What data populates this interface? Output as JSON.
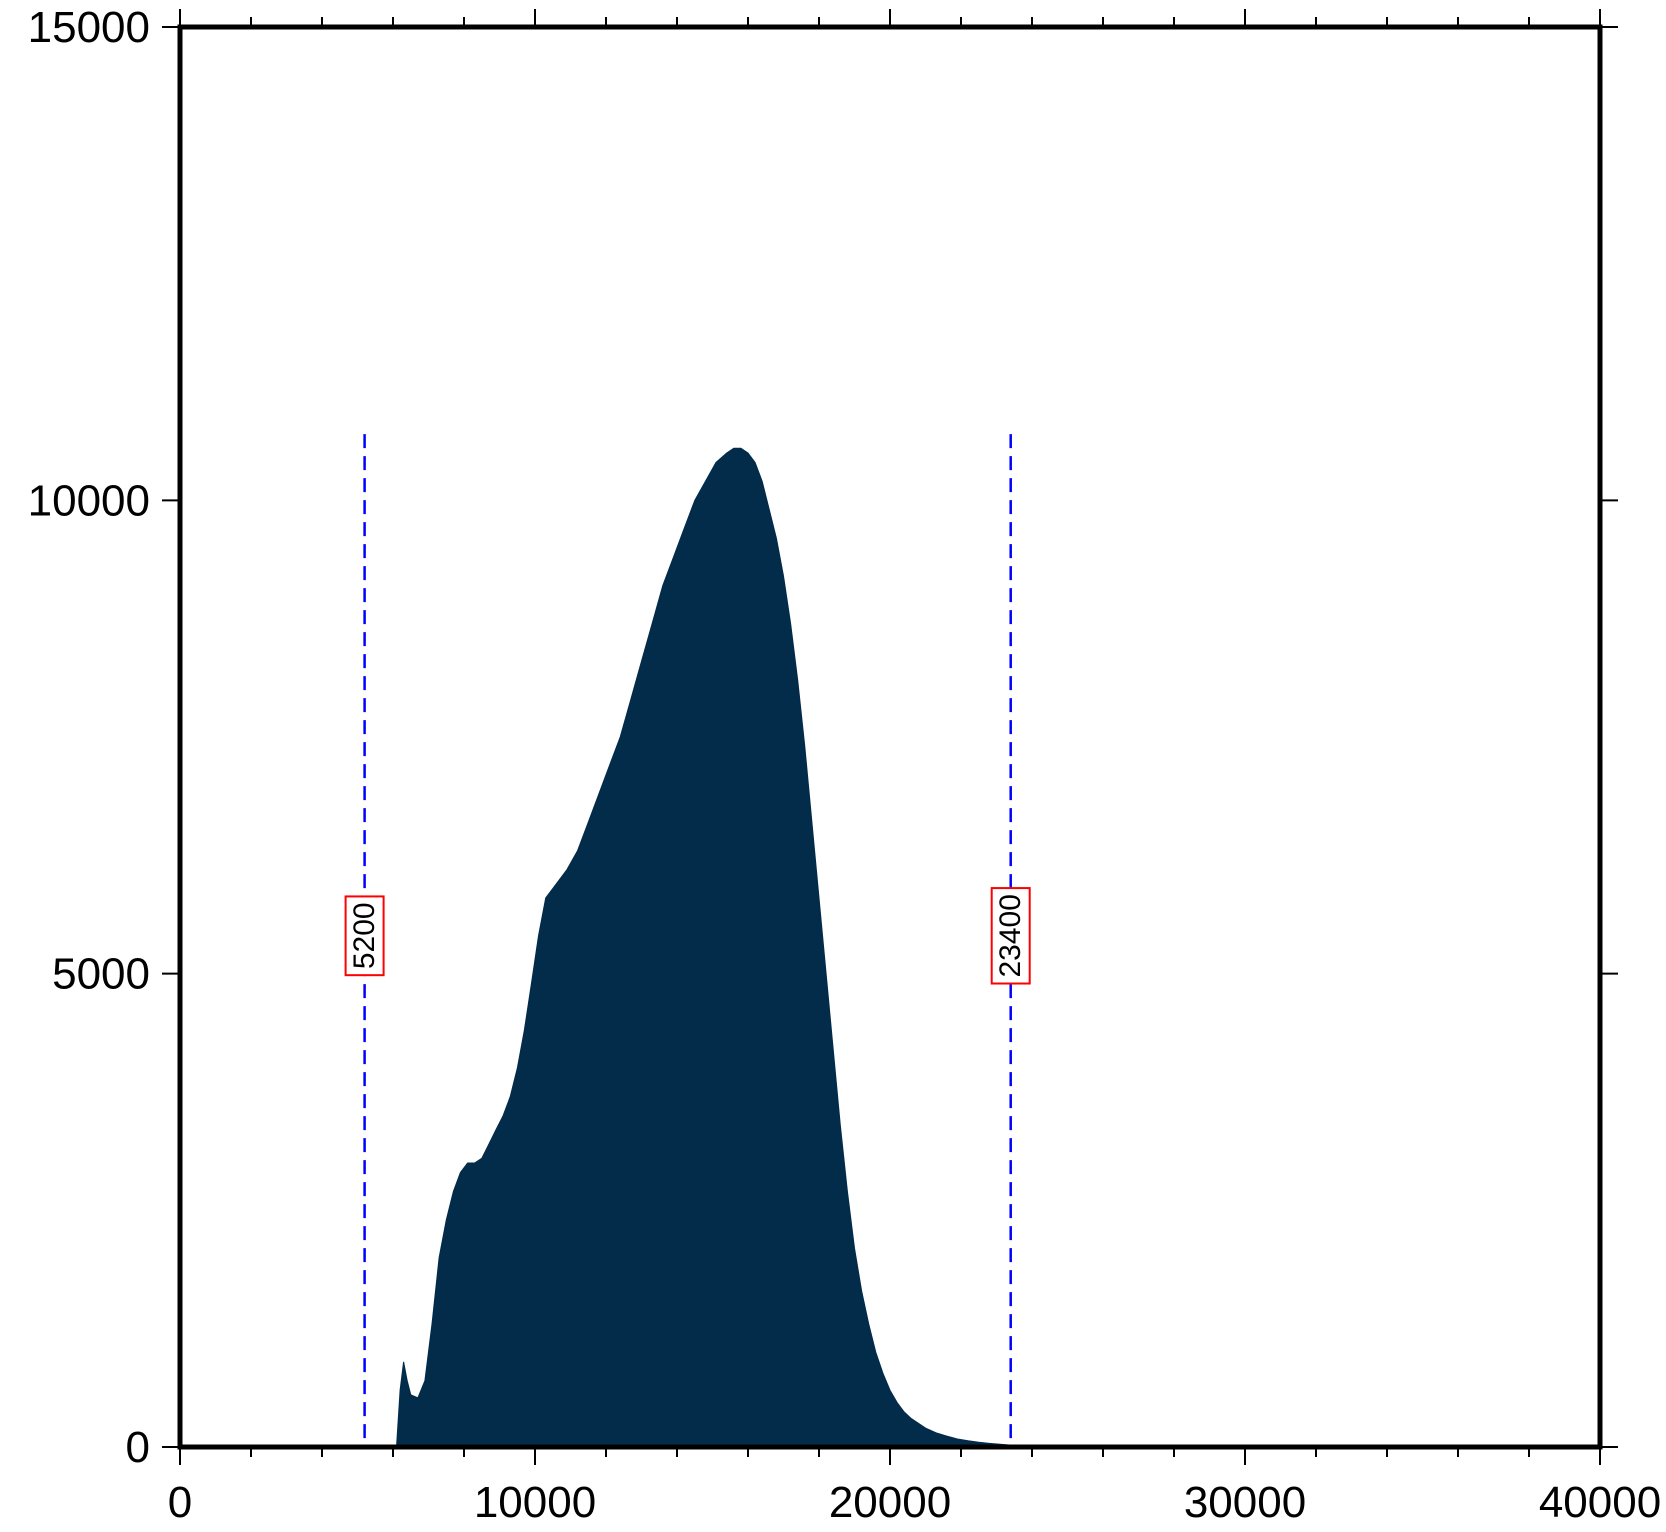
{
  "chart_data": {
    "type": "area",
    "title": "",
    "xlabel": "",
    "ylabel": "",
    "xlim": [
      0,
      40000
    ],
    "ylim": [
      0,
      15000
    ],
    "x_ticks": [
      0,
      10000,
      20000,
      30000,
      40000
    ],
    "x_tick_labels": [
      "0",
      "10000",
      "20000",
      "30000",
      "40000"
    ],
    "y_ticks": [
      0,
      5000,
      10000,
      15000
    ],
    "y_tick_labels": [
      "0",
      "5000",
      "10000",
      "15000"
    ],
    "grid": false,
    "legend": "none",
    "series": [
      {
        "fill_color": "#032b4a",
        "x": [
          6100,
          6200,
          6300,
          6400,
          6500,
          6700,
          6900,
          7100,
          7300,
          7500,
          7700,
          7900,
          8100,
          8300,
          8500,
          8700,
          8900,
          9100,
          9300,
          9500,
          9700,
          9900,
          10100,
          10300,
          10500,
          10700,
          10900,
          11200,
          11500,
          11800,
          12100,
          12400,
          12700,
          13000,
          13300,
          13600,
          13900,
          14200,
          14500,
          14800,
          15100,
          15400,
          15600,
          15800,
          16000,
          16200,
          16400,
          16600,
          16800,
          17000,
          17200,
          17400,
          17600,
          17800,
          18000,
          18200,
          18400,
          18600,
          18800,
          19000,
          19200,
          19400,
          19600,
          19800,
          20000,
          20200,
          20400,
          20600,
          20800,
          21000,
          21300,
          21600,
          21900,
          22200,
          22500,
          22800,
          23100,
          23400,
          23700,
          24000,
          24500,
          25000
        ],
        "y": [
          0,
          600,
          900,
          700,
          550,
          520,
          700,
          1300,
          2000,
          2400,
          2700,
          2900,
          3000,
          3000,
          3050,
          3200,
          3350,
          3500,
          3700,
          4000,
          4400,
          4900,
          5400,
          5800,
          5900,
          6000,
          6100,
          6300,
          6600,
          6900,
          7200,
          7500,
          7900,
          8300,
          8700,
          9100,
          9400,
          9700,
          10000,
          10200,
          10400,
          10500,
          10550,
          10550,
          10500,
          10400,
          10200,
          9900,
          9600,
          9200,
          8700,
          8100,
          7400,
          6600,
          5800,
          5000,
          4200,
          3400,
          2700,
          2100,
          1650,
          1300,
          1000,
          780,
          600,
          470,
          370,
          300,
          250,
          200,
          150,
          115,
          85,
          65,
          50,
          38,
          28,
          20,
          14,
          10,
          5,
          0
        ]
      }
    ],
    "reference_lines": [
      {
        "x": 5200,
        "label": "5200",
        "color": "#0000ff",
        "label_box_color": "#ff0000"
      },
      {
        "x": 23400,
        "label": "23400",
        "color": "#0000ff",
        "label_box_color": "#ff0000"
      }
    ]
  }
}
